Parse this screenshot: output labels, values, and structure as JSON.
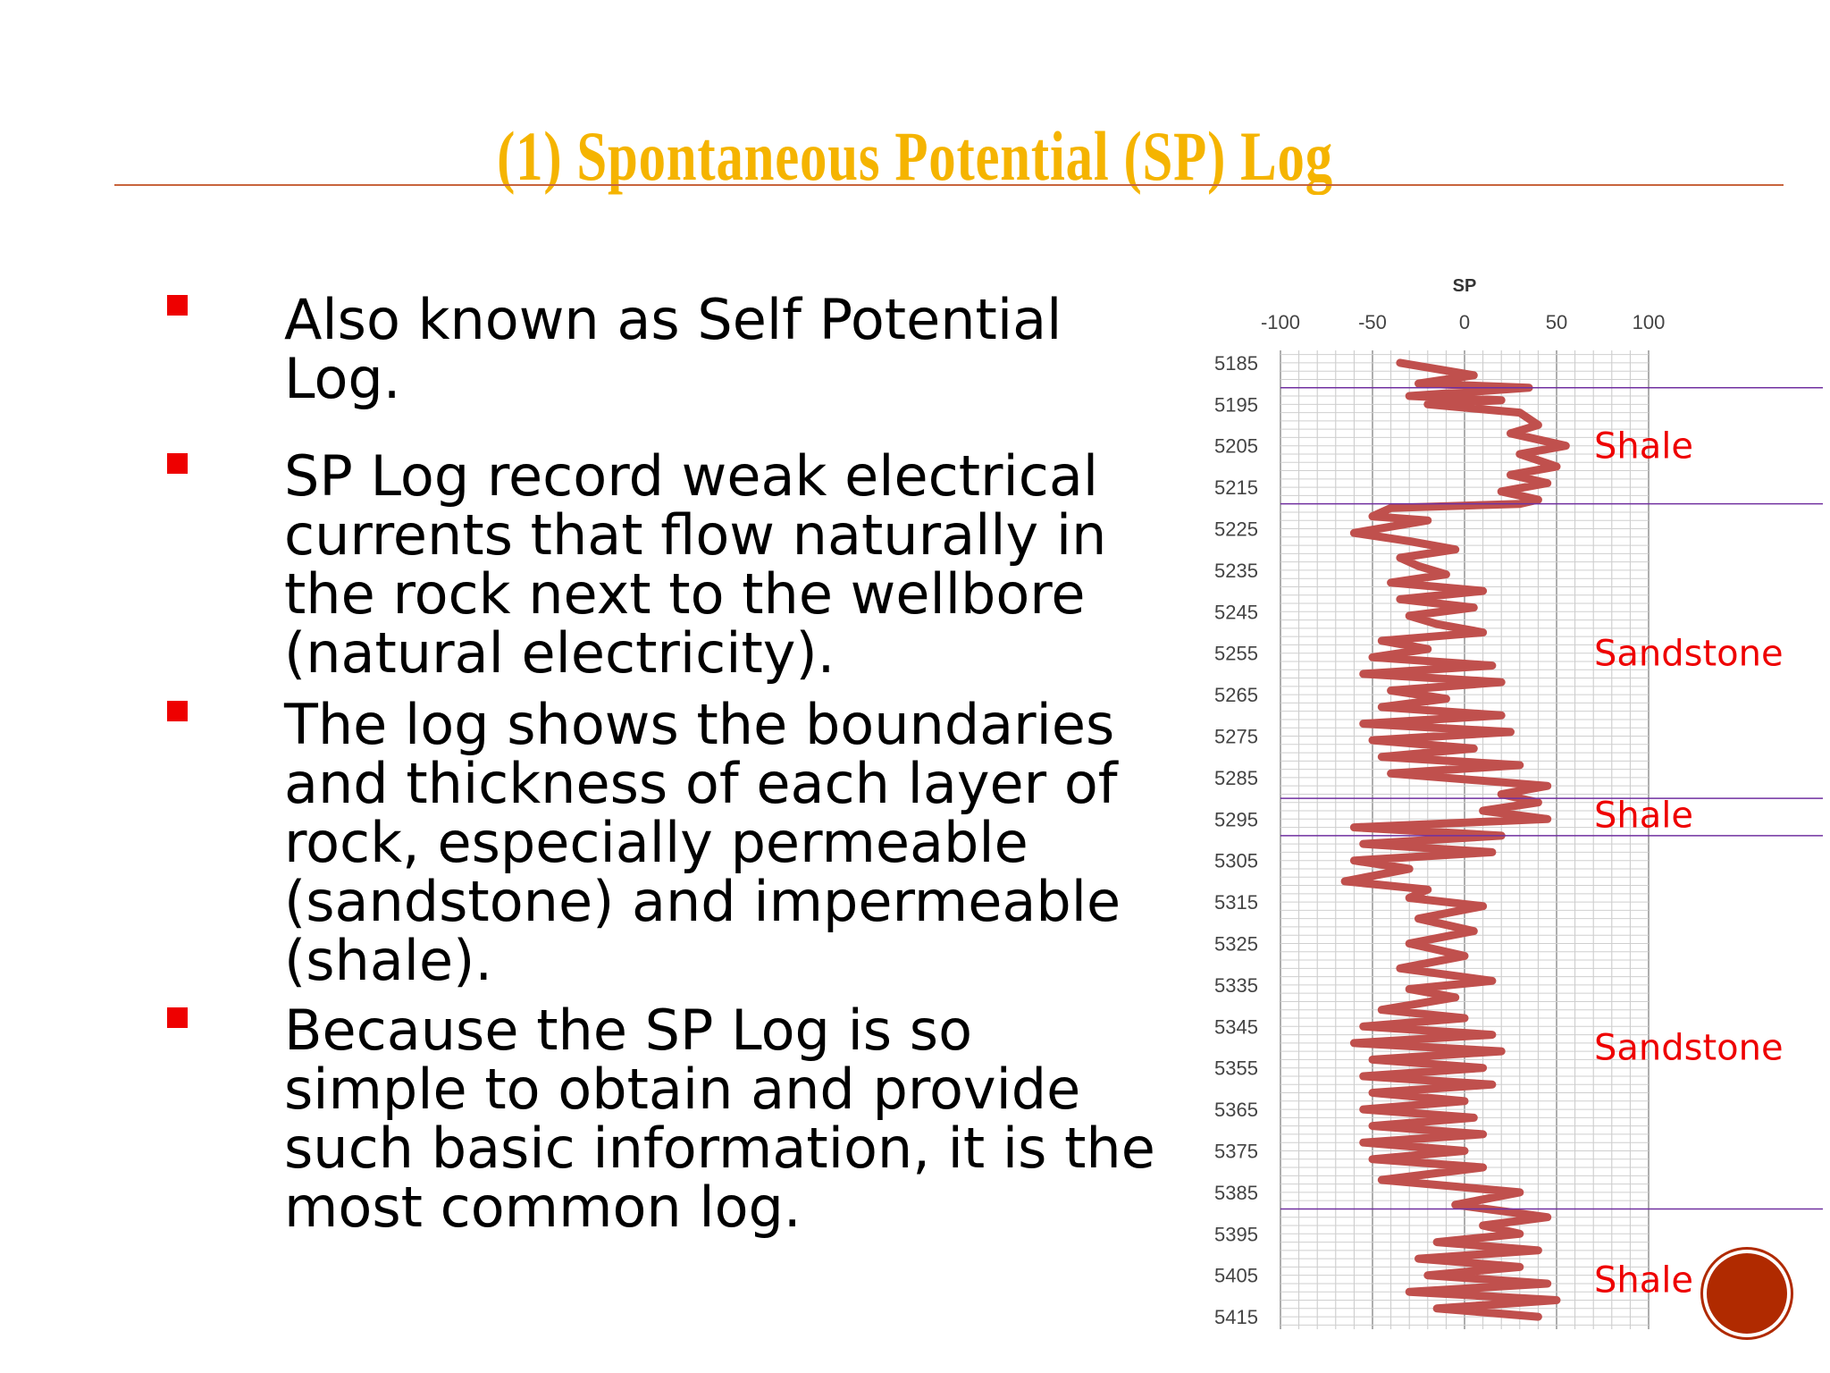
{
  "slide": {
    "title": "(1) Spontaneous Potential (SP) Log",
    "bullets": [
      "Also known as Self Potential Log.",
      "SP Log record weak electrical currents that flow naturally in the rock next to the wellbore (natural electricity).",
      "The log shows the boundaries and thickness of each layer of rock, especially permeable (sandstone) and impermeable (shale).",
      "Because the SP Log is so simple to obtain and provide such basic information, it is the most common log."
    ],
    "colors": {
      "title": "#f5b400",
      "bullet": "#ee0000",
      "rule": "#c8643c",
      "log_trace": "#c0504d",
      "boundary": "#7030a0",
      "lithology_label": "#ee0000"
    }
  },
  "chart_data": {
    "type": "line",
    "title": "SP",
    "x_ticks": [
      "-100",
      "-50",
      "0",
      "50",
      "100"
    ],
    "xlim": [
      -100,
      100
    ],
    "y_ticks": [
      "5185",
      "5195",
      "5205",
      "5215",
      "5225",
      "5235",
      "5245",
      "5255",
      "5265",
      "5275",
      "5285",
      "5295",
      "5305",
      "5315",
      "5325",
      "5335",
      "5345",
      "5355",
      "5365",
      "5375",
      "5385",
      "5395",
      "5405",
      "5415"
    ],
    "ylim": [
      5182,
      5418
    ],
    "grid": true,
    "series": [
      {
        "x": [
          -35,
          5,
          -25,
          35,
          -30,
          20,
          -20,
          30,
          40,
          25,
          55,
          30,
          50,
          25,
          45,
          20,
          40,
          30,
          -40,
          -50,
          -20,
          -60,
          -30,
          -5,
          -35,
          -25,
          -10,
          -40,
          10,
          -35,
          5,
          -30,
          -15,
          10,
          -45,
          -20,
          -50,
          15,
          -55,
          20,
          -40,
          -10,
          -45,
          20,
          -55,
          25,
          -50,
          5,
          -45,
          30,
          -40,
          45,
          20,
          40,
          10,
          45,
          -60,
          20,
          -55,
          15,
          -60,
          -30,
          -65,
          -20,
          -30,
          10,
          -25,
          5,
          -30,
          0,
          -35,
          15,
          -30,
          -5,
          -45,
          0,
          -55,
          15,
          -60,
          20,
          -50,
          10,
          -55,
          15,
          -50,
          0,
          -55,
          5,
          -50,
          10,
          -55,
          0,
          -50,
          10,
          -45,
          30,
          -5,
          45,
          10,
          30,
          -15,
          40,
          -25,
          30,
          -20,
          45,
          -30,
          50,
          -15,
          40
        ],
        "y": [
          5185,
          5188,
          5190,
          5191,
          5193,
          5194,
          5195,
          5197,
          5200,
          5202,
          5205,
          5207,
          5210,
          5212,
          5214,
          5216,
          5218,
          5219,
          5220,
          5222,
          5223,
          5226,
          5228,
          5230,
          5232,
          5234,
          5236,
          5238,
          5240,
          5242,
          5244,
          5246,
          5248,
          5250,
          5252,
          5254,
          5256,
          5258,
          5260,
          5262,
          5264,
          5266,
          5268,
          5270,
          5272,
          5274,
          5276,
          5278,
          5280,
          5282,
          5284,
          5287,
          5289,
          5291,
          5293,
          5295,
          5297,
          5299,
          5301,
          5303,
          5305,
          5307,
          5310,
          5312,
          5314,
          5316,
          5319,
          5322,
          5325,
          5328,
          5331,
          5334,
          5336,
          5338,
          5341,
          5343,
          5345,
          5347,
          5349,
          5351,
          5353,
          5355,
          5357,
          5359,
          5361,
          5363,
          5365,
          5367,
          5369,
          5371,
          5373,
          5375,
          5377,
          5379,
          5382,
          5385,
          5388,
          5391,
          5393,
          5395,
          5397,
          5399,
          5401,
          5403,
          5405,
          5407,
          5409,
          5411,
          5413,
          5415
        ]
      }
    ],
    "boundaries": [
      5191,
      5219,
      5290,
      5299,
      5389
    ],
    "lithology_labels": [
      {
        "text": "Shale",
        "depth": 5205
      },
      {
        "text": "Sandstone",
        "depth": 5255
      },
      {
        "text": "Shale",
        "depth": 5294
      },
      {
        "text": "Sandstone",
        "depth": 5350
      },
      {
        "text": "Shale",
        "depth": 5406
      }
    ]
  }
}
